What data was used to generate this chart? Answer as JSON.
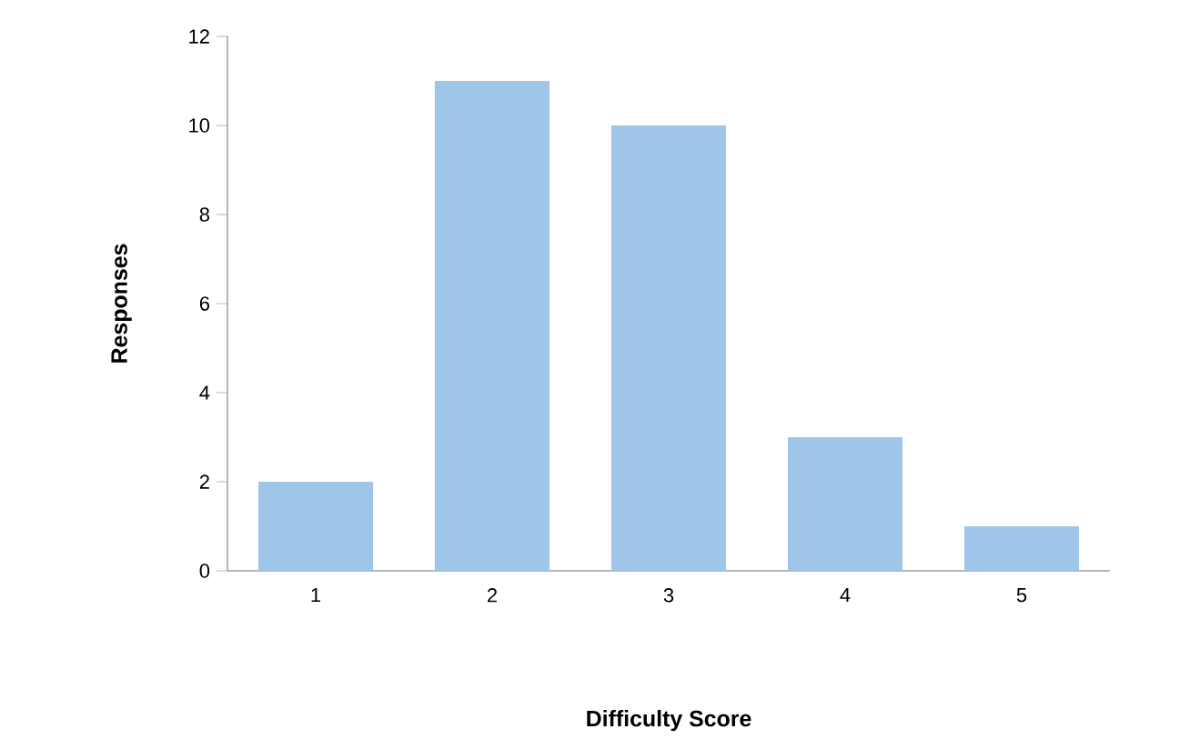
{
  "chart_data": {
    "type": "bar",
    "xlabel": "Difficulty Score",
    "ylabel": "Responses",
    "categories": [
      "1",
      "2",
      "3",
      "4",
      "5"
    ],
    "values": [
      2,
      11,
      10,
      3,
      1
    ],
    "color": "#9fc5e8",
    "ylim": [
      0,
      12
    ],
    "yticks": [
      0,
      2,
      4,
      6,
      8,
      10,
      12
    ],
    "grid": false
  }
}
